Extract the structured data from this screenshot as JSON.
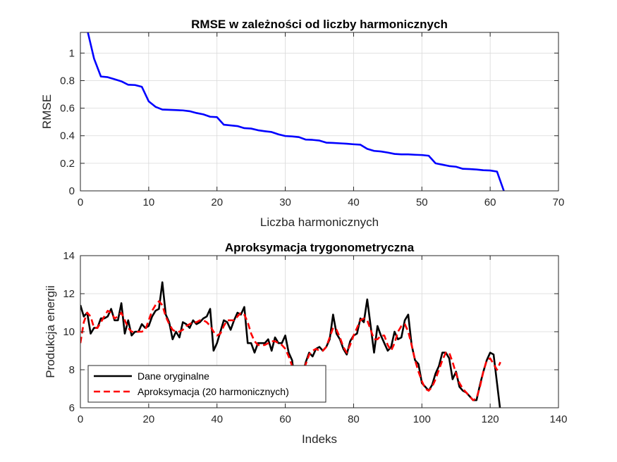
{
  "chart_data": [
    {
      "type": "line",
      "title": "RMSE w zależności od liczby harmonicznych",
      "xlabel": "Liczba harmonicznych",
      "ylabel": "RMSE",
      "xlim": [
        0,
        70
      ],
      "ylim": [
        0,
        1.15
      ],
      "xticks": [
        0,
        10,
        20,
        30,
        40,
        50,
        60,
        70
      ],
      "yticks": [
        0,
        0.2,
        0.4,
        0.6,
        0.8,
        1
      ],
      "xtick_labels": [
        "0",
        "10",
        "20",
        "30",
        "40",
        "50",
        "60",
        "70"
      ],
      "ytick_labels": [
        "0",
        "0.2",
        "0.4",
        "0.6",
        "0.8",
        "1"
      ],
      "grid": true,
      "series": [
        {
          "color": "#0000ff",
          "style": "solid",
          "x": [
            1,
            2,
            3,
            4,
            5,
            6,
            7,
            8,
            9,
            10,
            11,
            12,
            13,
            14,
            15,
            16,
            17,
            18,
            19,
            20,
            21,
            22,
            23,
            24,
            25,
            26,
            27,
            28,
            29,
            30,
            31,
            32,
            33,
            34,
            35,
            36,
            37,
            38,
            39,
            40,
            41,
            42,
            43,
            44,
            45,
            46,
            47,
            48,
            49,
            50,
            51,
            52,
            53,
            54,
            55,
            56,
            57,
            58,
            59,
            60,
            61,
            62
          ],
          "values": [
            1.17,
            0.96,
            0.83,
            0.825,
            0.81,
            0.795,
            0.77,
            0.768,
            0.755,
            0.65,
            0.61,
            0.59,
            0.588,
            0.586,
            0.584,
            0.578,
            0.565,
            0.555,
            0.538,
            0.535,
            0.48,
            0.475,
            0.47,
            0.455,
            0.452,
            0.44,
            0.433,
            0.427,
            0.41,
            0.398,
            0.395,
            0.39,
            0.372,
            0.37,
            0.365,
            0.35,
            0.348,
            0.345,
            0.342,
            0.338,
            0.335,
            0.305,
            0.29,
            0.286,
            0.278,
            0.268,
            0.265,
            0.265,
            0.262,
            0.26,
            0.255,
            0.2,
            0.19,
            0.18,
            0.175,
            0.16,
            0.158,
            0.155,
            0.15,
            0.148,
            0.14,
            0.0
          ]
        }
      ]
    },
    {
      "type": "line",
      "title": "Aproksymacja trygonometryczna",
      "xlabel": "Indeks",
      "ylabel": "Produkcja energii",
      "xlim": [
        0,
        140
      ],
      "ylim": [
        6,
        14
      ],
      "xticks": [
        0,
        20,
        40,
        60,
        80,
        100,
        120,
        140
      ],
      "yticks": [
        6,
        8,
        10,
        12,
        14
      ],
      "xtick_labels": [
        "0",
        "20",
        "40",
        "60",
        "80",
        "100",
        "120",
        "140"
      ],
      "ytick_labels": [
        "6",
        "8",
        "10",
        "12",
        "14"
      ],
      "grid": true,
      "legend_position": "bottom-left",
      "series": [
        {
          "name": "Dane oryginalne",
          "color": "#000000",
          "style": "solid",
          "values": [
            11.4,
            10.8,
            11.0,
            9.9,
            10.2,
            10.2,
            10.7,
            10.7,
            10.8,
            11.2,
            10.6,
            10.6,
            11.5,
            9.9,
            10.6,
            9.8,
            10.0,
            10.0,
            10.4,
            10.2,
            10.3,
            10.8,
            11.1,
            11.2,
            12.6,
            10.9,
            10.5,
            9.6,
            10.0,
            9.7,
            10.5,
            10.4,
            10.2,
            10.6,
            10.4,
            10.5,
            10.7,
            10.8,
            11.2,
            9.0,
            9.4,
            10.0,
            10.6,
            10.5,
            10.1,
            10.6,
            11.0,
            10.9,
            11.3,
            9.4,
            9.4,
            8.9,
            9.4,
            9.4,
            9.4,
            9.6,
            9.0,
            9.7,
            9.4,
            9.4,
            9.8,
            8.9,
            8.5,
            7.0,
            7.5,
            7.7,
            8.4,
            8.9,
            8.7,
            9.1,
            9.2,
            9.0,
            9.2,
            9.6,
            10.9,
            9.9,
            9.6,
            9.1,
            8.8,
            9.5,
            9.8,
            9.9,
            10.7,
            10.5,
            11.7,
            10.3,
            8.9,
            10.3,
            9.8,
            9.4,
            9.0,
            9.2,
            10.0,
            9.6,
            9.7,
            10.6,
            10.9,
            9.3,
            8.5,
            8.3,
            7.3,
            7.1,
            6.9,
            7.2,
            7.8,
            8.2,
            8.9,
            8.9,
            8.6,
            7.5,
            7.9,
            7.1,
            6.9,
            6.8,
            6.6,
            6.4,
            6.4,
            7.2,
            7.9,
            8.5,
            8.9,
            8.8,
            7.3,
            5.8
          ]
        },
        {
          "name": "Aproksymacja (20 harmonicznych)",
          "color": "#ff0000",
          "style": "dashed",
          "values": [
            9.4,
            10.5,
            11.0,
            10.8,
            10.2,
            10.2,
            10.5,
            10.8,
            11.1,
            11.0,
            10.7,
            10.8,
            11.0,
            10.6,
            10.2,
            10.0,
            10.0,
            10.0,
            10.0,
            10.1,
            10.6,
            11.1,
            11.4,
            11.6,
            11.4,
            10.8,
            10.4,
            10.1,
            10.0,
            10.0,
            10.1,
            10.3,
            10.4,
            10.5,
            10.5,
            10.6,
            10.6,
            10.5,
            10.3,
            10.0,
            9.8,
            9.9,
            10.3,
            10.6,
            10.6,
            10.6,
            10.8,
            11.0,
            10.9,
            10.5,
            9.9,
            9.5,
            9.3,
            9.3,
            9.3,
            9.4,
            9.5,
            9.5,
            9.4,
            9.3,
            9.1,
            8.7,
            8.2,
            7.8,
            7.6,
            7.8,
            8.3,
            8.8,
            9.0,
            9.1,
            9.0,
            9.0,
            9.2,
            9.7,
            10.2,
            10.1,
            9.7,
            9.2,
            8.9,
            9.3,
            9.8,
            10.2,
            10.6,
            10.7,
            10.6,
            10.1,
            9.6,
            9.6,
            9.8,
            9.8,
            9.3,
            9.0,
            9.4,
            10.0,
            10.3,
            10.4,
            10.0,
            9.3,
            8.5,
            7.9,
            7.4,
            7.0,
            6.9,
            7.1,
            7.5,
            8.0,
            8.5,
            8.9,
            8.9,
            8.4,
            7.8,
            7.3,
            7.0,
            6.8,
            6.6,
            6.4,
            6.5,
            7.1,
            7.9,
            8.5,
            8.6,
            8.3,
            8.0,
            8.4
          ]
        }
      ]
    }
  ]
}
